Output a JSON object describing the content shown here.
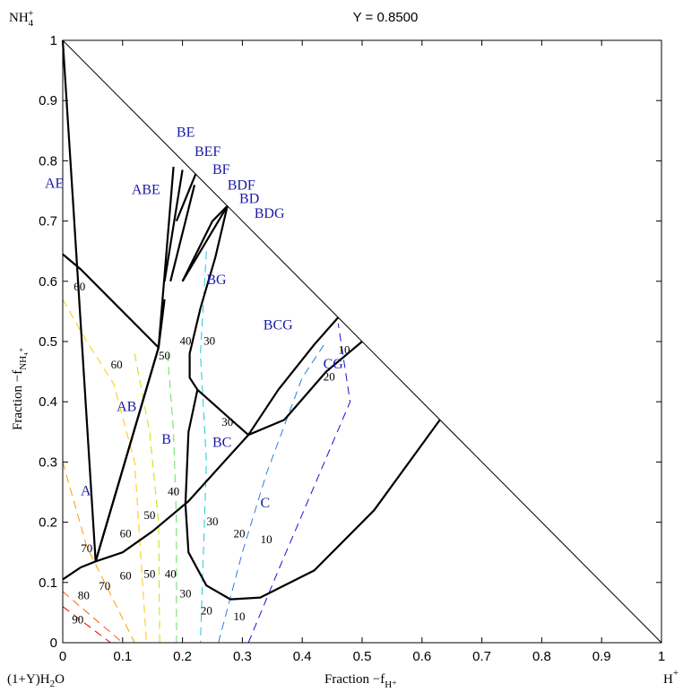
{
  "chart_data": {
    "type": "ternary-phase-diagram",
    "title": "Y = 0.8500",
    "xlabel": "Fraction −f",
    "xlabel_sub": "H⁺",
    "ylabel": "Fraction −f",
    "ylabel_sub": "NH₄⁺",
    "corner_labels": {
      "top": "NH",
      "top_sub": "4",
      "top_sup": "+",
      "bottom_left": "(1+Y)H",
      "bottom_left_sub": "2",
      "bottom_left_end": "O",
      "bottom_right": "H",
      "bottom_right_sup": "+"
    },
    "xlim": [
      0,
      1
    ],
    "ylim": [
      0,
      1
    ],
    "x_ticks": [
      "0",
      "0.1",
      "0.2",
      "0.3",
      "0.4",
      "0.5",
      "0.6",
      "0.7",
      "0.8",
      "0.9",
      "1"
    ],
    "y_ticks": [
      "0",
      "0.1",
      "0.2",
      "0.3",
      "0.4",
      "0.5",
      "0.6",
      "0.7",
      "0.8",
      "0.9",
      "1"
    ],
    "label_color": "#1a1aa6",
    "boundaries": [
      [
        [
          0,
          1
        ],
        [
          0.018,
          0.72
        ],
        [
          0.055,
          0.135
        ],
        [
          0.16,
          0.49
        ]
      ],
      [
        [
          0,
          0.645
        ],
        [
          0.03,
          0.62
        ],
        [
          0.16,
          0.49
        ]
      ],
      [
        [
          0.055,
          0.135
        ],
        [
          0.16,
          0.49
        ],
        [
          0.17,
          0.57
        ]
      ],
      [
        [
          0.16,
          0.49
        ],
        [
          0.185,
          0.79
        ]
      ],
      [
        [
          0.17,
          0.6
        ],
        [
          0.2,
          0.785
        ]
      ],
      [
        [
          0.18,
          0.6
        ],
        [
          0.22,
          0.76
        ]
      ],
      [
        [
          0.2,
          0.6
        ],
        [
          0.25,
          0.7
        ],
        [
          0.275,
          0.725
        ]
      ],
      [
        [
          0.19,
          0.7
        ],
        [
          0.222,
          0.778
        ]
      ],
      [
        [
          0.2,
          0.6
        ],
        [
          0.275,
          0.725
        ]
      ],
      [
        [
          0.275,
          0.725
        ],
        [
          0.255,
          0.64
        ],
        [
          0.23,
          0.555
        ],
        [
          0.212,
          0.48
        ],
        [
          0.212,
          0.44
        ],
        [
          0.225,
          0.42
        ]
      ],
      [
        [
          0.225,
          0.42
        ],
        [
          0.27,
          0.38
        ],
        [
          0.31,
          0.345
        ]
      ],
      [
        [
          0.0,
          0.105
        ],
        [
          0.03,
          0.125
        ],
        [
          0.055,
          0.135
        ]
      ],
      [
        [
          0.055,
          0.135
        ],
        [
          0.1,
          0.15
        ],
        [
          0.15,
          0.185
        ],
        [
          0.21,
          0.235
        ],
        [
          0.26,
          0.29
        ],
        [
          0.31,
          0.345
        ]
      ],
      [
        [
          0.31,
          0.345
        ],
        [
          0.36,
          0.42
        ],
        [
          0.42,
          0.495
        ],
        [
          0.46,
          0.54
        ]
      ],
      [
        [
          0.31,
          0.345
        ],
        [
          0.37,
          0.37
        ],
        [
          0.44,
          0.45
        ],
        [
          0.5,
          0.5
        ]
      ],
      [
        [
          0.225,
          0.42
        ],
        [
          0.21,
          0.35
        ],
        [
          0.205,
          0.23
        ],
        [
          0.21,
          0.15
        ],
        [
          0.24,
          0.095
        ],
        [
          0.28,
          0.072
        ],
        [
          0.33,
          0.075
        ],
        [
          0.42,
          0.12
        ],
        [
          0.52,
          0.22
        ],
        [
          0.63,
          0.37
        ]
      ]
    ],
    "region_labels": [
      {
        "text": "ABE",
        "x": 0.115,
        "y": 0.745
      },
      {
        "text": "AE",
        "x": -0.03,
        "y": 0.755
      },
      {
        "text": "AB",
        "x": 0.09,
        "y": 0.385
      },
      {
        "text": "A",
        "x": 0.03,
        "y": 0.245
      },
      {
        "text": "B",
        "x": 0.165,
        "y": 0.33
      },
      {
        "text": "BC",
        "x": 0.25,
        "y": 0.325
      },
      {
        "text": "BG",
        "x": 0.24,
        "y": 0.595
      },
      {
        "text": "BCG",
        "x": 0.335,
        "y": 0.52
      },
      {
        "text": "CG",
        "x": 0.435,
        "y": 0.455
      },
      {
        "text": "C",
        "x": 0.33,
        "y": 0.225
      },
      {
        "text": "BE",
        "x": 0.19,
        "y": 0.84
      },
      {
        "text": "BEF",
        "x": 0.22,
        "y": 0.808
      },
      {
        "text": "BF",
        "x": 0.25,
        "y": 0.778
      },
      {
        "text": "BDF",
        "x": 0.275,
        "y": 0.752
      },
      {
        "text": "BD",
        "x": 0.295,
        "y": 0.73
      },
      {
        "text": "BDG",
        "x": 0.32,
        "y": 0.705
      }
    ],
    "contour_labels": [
      {
        "text": "60",
        "x": 0.028,
        "y": 0.585
      },
      {
        "text": "60",
        "x": 0.09,
        "y": 0.455
      },
      {
        "text": "50",
        "x": 0.17,
        "y": 0.47
      },
      {
        "text": "40",
        "x": 0.205,
        "y": 0.495
      },
      {
        "text": "30",
        "x": 0.245,
        "y": 0.495
      },
      {
        "text": "30",
        "x": 0.275,
        "y": 0.36
      },
      {
        "text": "20",
        "x": 0.445,
        "y": 0.435
      },
      {
        "text": "10",
        "x": 0.47,
        "y": 0.48
      },
      {
        "text": "40",
        "x": 0.185,
        "y": 0.245
      },
      {
        "text": "50",
        "x": 0.145,
        "y": 0.205
      },
      {
        "text": "60",
        "x": 0.105,
        "y": 0.175
      },
      {
        "text": "70",
        "x": 0.04,
        "y": 0.15
      },
      {
        "text": "30",
        "x": 0.25,
        "y": 0.195
      },
      {
        "text": "20",
        "x": 0.295,
        "y": 0.175
      },
      {
        "text": "10",
        "x": 0.34,
        "y": 0.165
      },
      {
        "text": "60",
        "x": 0.105,
        "y": 0.105
      },
      {
        "text": "50",
        "x": 0.145,
        "y": 0.108
      },
      {
        "text": "40",
        "x": 0.18,
        "y": 0.108
      },
      {
        "text": "70",
        "x": 0.07,
        "y": 0.088
      },
      {
        "text": "80",
        "x": 0.035,
        "y": 0.072
      },
      {
        "text": "30",
        "x": 0.205,
        "y": 0.075
      },
      {
        "text": "90",
        "x": 0.025,
        "y": 0.032
      },
      {
        "text": "20",
        "x": 0.24,
        "y": 0.047
      },
      {
        "text": "10",
        "x": 0.295,
        "y": 0.037
      }
    ],
    "contours": [
      {
        "value": 90,
        "color": "#e60000",
        "points": [
          [
            0.0,
            0.06
          ],
          [
            0.08,
            0.0
          ]
        ]
      },
      {
        "value": 80,
        "color": "#ff5a00",
        "points": [
          [
            0.0,
            0.085
          ],
          [
            0.1,
            0.0
          ]
        ]
      },
      {
        "value": 70,
        "color": "#ff9a00",
        "points": [
          [
            0.0,
            0.3
          ],
          [
            0.04,
            0.16
          ],
          [
            0.08,
            0.08
          ],
          [
            0.12,
            0.0
          ]
        ]
      },
      {
        "value": 60,
        "color": "#ffc800",
        "points": [
          [
            0.0,
            0.57
          ],
          [
            0.04,
            0.5
          ],
          [
            0.085,
            0.43
          ],
          [
            0.12,
            0.3
          ],
          [
            0.13,
            0.15
          ],
          [
            0.14,
            0.0
          ]
        ]
      },
      {
        "value": 50,
        "color": "#c8e000",
        "points": [
          [
            0.12,
            0.48
          ],
          [
            0.145,
            0.35
          ],
          [
            0.16,
            0.2
          ],
          [
            0.162,
            0.0
          ]
        ]
      },
      {
        "value": 40,
        "color": "#64e060",
        "points": [
          [
            0.175,
            0.48
          ],
          [
            0.185,
            0.35
          ],
          [
            0.19,
            0.2
          ],
          [
            0.19,
            0.0
          ]
        ]
      },
      {
        "value": 30,
        "color": "#20c8e0",
        "points": [
          [
            0.24,
            0.65
          ],
          [
            0.23,
            0.48
          ],
          [
            0.24,
            0.3
          ],
          [
            0.23,
            0.0
          ]
        ]
      },
      {
        "value": 20,
        "color": "#2a7ee8",
        "points": [
          [
            0.26,
            0.0
          ],
          [
            0.3,
            0.15
          ],
          [
            0.34,
            0.28
          ],
          [
            0.4,
            0.44
          ],
          [
            0.44,
            0.5
          ]
        ]
      },
      {
        "value": 10,
        "color": "#1414d2",
        "points": [
          [
            0.31,
            0.0
          ],
          [
            0.36,
            0.12
          ],
          [
            0.42,
            0.26
          ],
          [
            0.48,
            0.4
          ],
          [
            0.46,
            0.53
          ]
        ]
      }
    ]
  }
}
